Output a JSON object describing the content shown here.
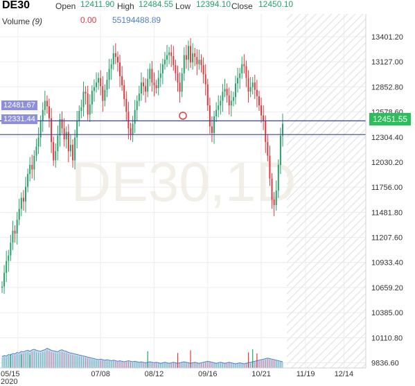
{
  "header": {
    "symbol": "DE30",
    "open_label": "Open",
    "open_value": "12411.90",
    "high_label": "High",
    "high_value": "12484.55",
    "low_label": "Low",
    "low_value": "12394.10",
    "close_label": "Close",
    "close_value": "12450.10",
    "volume_label": "Volume",
    "volume_param": "(9)",
    "volume_change": "0.00",
    "volume_value": "55194488.89"
  },
  "watermark": "DE30,1D",
  "colors": {
    "up": "#26a269",
    "down": "#e0383e",
    "hline": "#3b3fa8",
    "hline_label": "#8e8ee0",
    "last_price": "#2bbf5c",
    "volume_fill": "#b8d0f0",
    "volume_line": "#4a7fd0",
    "hatch": "#e8e8e8",
    "grid": "#ececec"
  },
  "price_labels": {
    "hline_upper": "12481.67",
    "hline_lower": "12331.44",
    "last_price": "12451.55"
  },
  "chart_data": {
    "type": "candlestick",
    "title": "DE30",
    "timeframe": "1D",
    "x_tick_labels": [
      "05/15",
      "07/08",
      "08/12",
      "09/16",
      "10/21",
      "11/19",
      "12/14"
    ],
    "x_secondary_label": "2020",
    "y_tick_labels": [
      "13401.20",
      "13127.00",
      "12852.80",
      "12578.60",
      "12304.40",
      "12030.20",
      "11756.00",
      "11481.80",
      "11207.60",
      "10933.40",
      "10659.20",
      "10385.00",
      "10110.80",
      "9836.60"
    ],
    "ylim": [
      9780,
      13560
    ],
    "x_dates_start": "2020-05-06",
    "x_dates_end": "2020-12-22",
    "last_candle_date": "2020-11-04",
    "horizontal_lines": [
      12481.67,
      12331.44
    ],
    "last_price": 12451.55,
    "ohlc_start": 10659,
    "closes": [
      10670,
      10820,
      10950,
      11010,
      11150,
      11280,
      11250,
      11400,
      11520,
      11640,
      11600,
      11760,
      11900,
      12000,
      11950,
      12100,
      12200,
      12300,
      12480,
      12600,
      12700,
      12640,
      12510,
      12250,
      12050,
      12150,
      12320,
      12500,
      12400,
      12280,
      12360,
      12150,
      12220,
      12050,
      12300,
      12480,
      12590,
      12630,
      12800,
      12780,
      12550,
      12660,
      12810,
      12850,
      12900,
      12950,
      12860,
      12700,
      12820,
      12930,
      13050,
      13100,
      13220,
      13180,
      13120,
      12970,
      12870,
      12720,
      12580,
      12400,
      12330,
      12450,
      12600,
      12700,
      12780,
      12900,
      12860,
      12800,
      12940,
      13050,
      12900,
      12870,
      12840,
      12950,
      13000,
      13100,
      13150,
      13200,
      13230,
      13190,
      13090,
      13000,
      12900,
      12800,
      13000,
      13200,
      13150,
      13300,
      13120,
      13220,
      13180,
      13100,
      13150,
      13090,
      12990,
      12880,
      12650,
      12420,
      12350,
      12530,
      12600,
      12650,
      12700,
      12800,
      12830,
      12760,
      12650,
      12700,
      12740,
      12890,
      12950,
      13000,
      13100,
      13080,
      12950,
      12800,
      12850,
      12900,
      12820,
      12750,
      12650,
      12540,
      12480,
      12250,
      12100,
      11850,
      11620,
      11560,
      11720,
      12000,
      12320,
      12450
    ],
    "volume_scale": [
      0,
      3000000000
    ],
    "volume_values": [
      1100000000,
      1200000000,
      1150000000,
      1300000000,
      1250000000,
      1400000000,
      1350000000,
      1500000000,
      1450000000,
      1600000000,
      1550000000,
      1650000000,
      1700000000,
      1600000000,
      1750000000,
      1800000000,
      1700000000,
      1650000000,
      1600000000,
      1700000000,
      1750000000,
      1900000000,
      1800000000,
      1700000000,
      1650000000,
      1600000000,
      1550000000,
      1700000000,
      1750000000,
      1650000000,
      1600000000,
      1500000000,
      1450000000,
      1400000000,
      1350000000,
      1300000000,
      1250000000,
      1200000000,
      1150000000,
      1100000000,
      1050000000,
      1000000000,
      950000000,
      900000000,
      850000000,
      800000000,
      850000000,
      800000000,
      750000000,
      800000000,
      750000000,
      700000000,
      750000000,
      700000000,
      650000000,
      700000000,
      650000000,
      600000000,
      650000000,
      700000000,
      650000000,
      600000000,
      650000000,
      600000000,
      550000000,
      600000000,
      550000000,
      500000000,
      550000000,
      600000000,
      550000000,
      500000000,
      550000000,
      500000000,
      450000000,
      500000000,
      550000000,
      500000000,
      450000000,
      500000000,
      550000000,
      500000000,
      450000000,
      500000000,
      550000000,
      600000000,
      550000000,
      500000000,
      450000000,
      500000000,
      550000000,
      500000000,
      450000000,
      500000000,
      550000000,
      600000000,
      650000000,
      600000000,
      550000000,
      500000000,
      450000000,
      500000000,
      550000000,
      500000000,
      450000000,
      500000000,
      550000000,
      500000000,
      450000000,
      400000000,
      450000000,
      500000000,
      450000000,
      400000000,
      450000000,
      500000000,
      550000000,
      600000000,
      650000000,
      700000000,
      750000000,
      800000000,
      850000000,
      900000000,
      950000000,
      900000000,
      850000000,
      800000000,
      750000000,
      700000000,
      650000000,
      600000000
    ],
    "volume_spikes": [
      [
        4,
        1350000000
      ],
      [
        9,
        1300000000
      ],
      [
        13,
        1250000000
      ],
      [
        68,
        1600000000
      ],
      [
        82,
        1450000000
      ],
      [
        88,
        1700000000
      ],
      [
        115,
        1500000000
      ],
      [
        117,
        1800000000
      ],
      [
        119,
        1400000000
      ]
    ],
    "grid": true,
    "price_axis_position": "right"
  }
}
